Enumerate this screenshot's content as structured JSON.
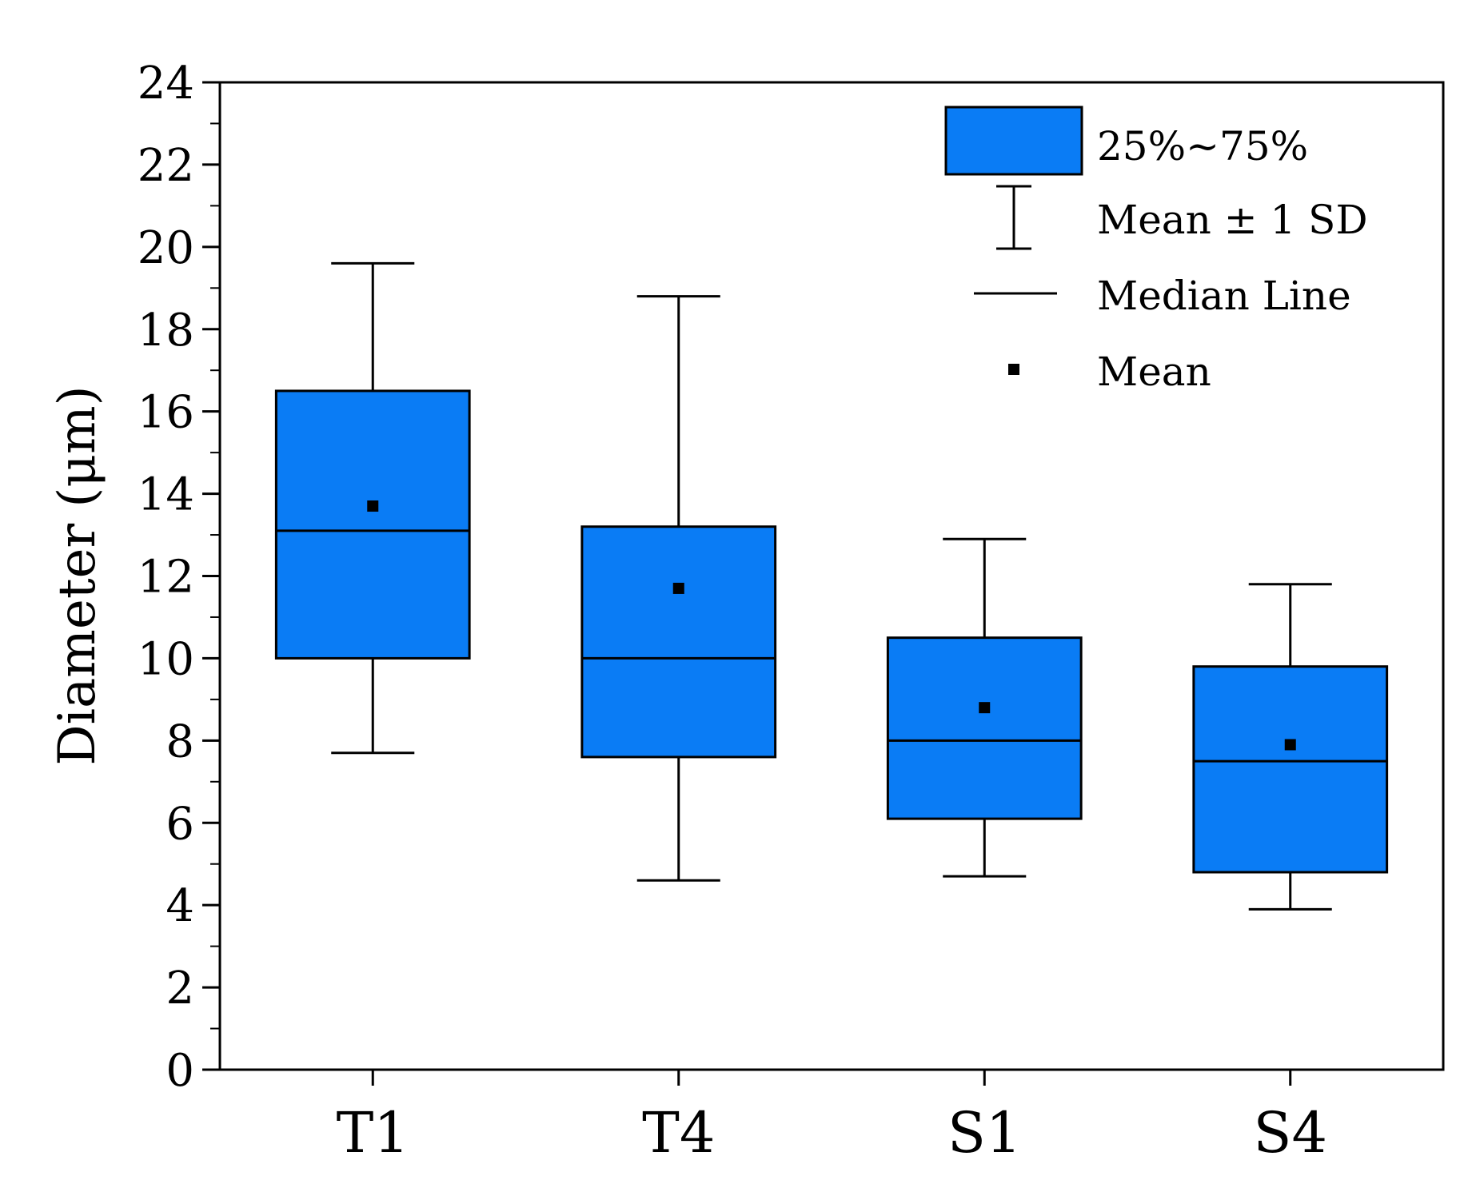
{
  "chart_data": {
    "type": "box",
    "title": "",
    "xlabel": "",
    "ylabel": "Diameter (μm)",
    "ylim": [
      0,
      24
    ],
    "yticks": [
      0,
      2,
      4,
      6,
      8,
      10,
      12,
      14,
      16,
      18,
      20,
      22,
      24
    ],
    "categories": [
      "T1",
      "T4",
      "S1",
      "S4"
    ],
    "boxes": [
      {
        "name": "T1",
        "q1": 10.0,
        "median": 13.1,
        "q3": 16.5,
        "mean": 13.7,
        "whisker_low": 7.7,
        "whisker_high": 19.6
      },
      {
        "name": "T4",
        "q1": 7.6,
        "median": 10.0,
        "q3": 13.2,
        "mean": 11.7,
        "whisker_low": 4.6,
        "whisker_high": 18.8
      },
      {
        "name": "S1",
        "q1": 6.1,
        "median": 8.0,
        "q3": 10.5,
        "mean": 8.8,
        "whisker_low": 4.7,
        "whisker_high": 12.9
      },
      {
        "name": "S4",
        "q1": 4.8,
        "median": 7.5,
        "q3": 9.8,
        "mean": 7.9,
        "whisker_low": 3.9,
        "whisker_high": 11.8
      }
    ],
    "legend": {
      "position": "top-right",
      "items": [
        {
          "key": "box",
          "label": "25%~75%"
        },
        {
          "key": "whisker",
          "label": "Mean ± 1 SD"
        },
        {
          "key": "median",
          "label": "Median Line"
        },
        {
          "key": "mean",
          "label": "Mean"
        }
      ]
    },
    "colors": {
      "box_fill": "#0a7cf5",
      "stroke": "#000000"
    }
  }
}
